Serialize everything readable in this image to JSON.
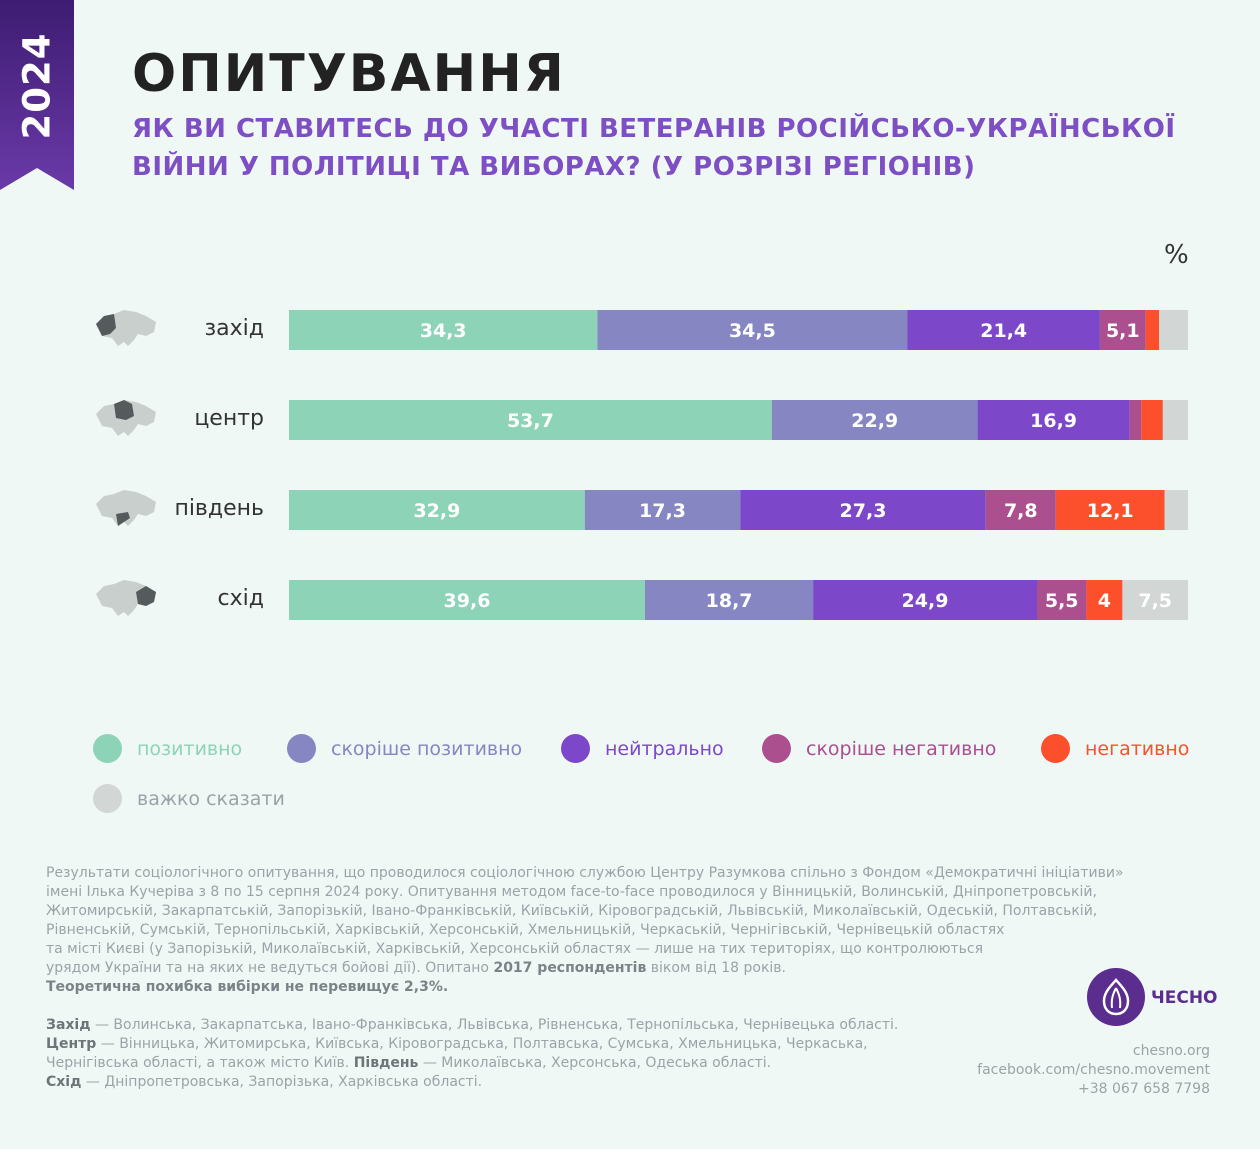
{
  "badge": {
    "year": "2024"
  },
  "header": {
    "title": "ОПИТУВАННЯ",
    "subtitle_line1": "ЯК ВИ СТАВИТЕСЬ ДО УЧАСТІ ВЕТЕРАНІВ РОСІЙСЬКО-УКРАЇНСЬКОЇ",
    "subtitle_line2": "ВІЙНИ У ПОЛІТИЦІ ТА ВИБОРАХ? (У РОЗРІЗІ РЕГІОНІВ)"
  },
  "colors": {
    "accent": "#7e4fc4",
    "ribbon": "#4b2484",
    "map": "#c9cfcd",
    "map_highlight": "#555a5c"
  },
  "chart_data": {
    "type": "bar",
    "orientation": "horizontal",
    "stacked": true,
    "unit": "%",
    "xlim": [
      0,
      100
    ],
    "categories": [
      "захід",
      "центр",
      "південь",
      "схід"
    ],
    "series": [
      {
        "name": "позитивно",
        "color": "#8dd3b7",
        "values": [
          34.3,
          53.7,
          32.9,
          39.6
        ],
        "labels": [
          "34,3",
          "53,7",
          "32,9",
          "39,6"
        ]
      },
      {
        "name": "скоріше позитивно",
        "color": "#8686c2",
        "values": [
          34.5,
          22.9,
          17.3,
          18.7
        ],
        "labels": [
          "34,5",
          "22,9",
          "17,3",
          "18,7"
        ]
      },
      {
        "name": "нейтрально",
        "color": "#7c47c8",
        "values": [
          21.4,
          16.9,
          27.3,
          24.9
        ],
        "labels": [
          "21,4",
          "16,9",
          "27,3",
          "24,9"
        ]
      },
      {
        "name": "скоріше негативно",
        "color": "#ab4f8f",
        "values": [
          5.1,
          1.3,
          7.8,
          5.5
        ],
        "labels": [
          "5,1",
          "",
          "7,8",
          "5,5"
        ]
      },
      {
        "name": "негативно",
        "color": "#fc4f2c",
        "values": [
          1.5,
          2.4,
          12.1,
          4
        ],
        "labels": [
          "",
          "",
          "12,1",
          "4"
        ]
      },
      {
        "name": "важко сказати",
        "color": "#d2d6d5",
        "values": [
          3.2,
          2.8,
          2.6,
          7.5
        ],
        "labels": [
          "",
          "",
          "",
          "7,5"
        ]
      }
    ],
    "legend": "bottom"
  },
  "footnote": {
    "line1": "Результати соціологічного опитування, що проводилося  соціологічною службою Центру Разумкова спільно з Фондом «Демократичні ініціативи»",
    "line2": "імені Ілька Кучеріва з 8 по 15 серпня 2024 року. Опитування методом face-to-face проводилося у Вінницькій, Волинській, Дніпропетровській,",
    "line3": "Житомирській, Закарпатській, Запорізькій, Івано-Франківській, Київській, Кіровоградській, Львівській, Миколаївській, Одеській, Полтавській,",
    "line4": "Рівненській, Сумській, Тернопільській, Харківській, Херсонській, Хмельницькій, Черкаській, Чернігівській, Чернівецькій областях",
    "line5": "та місті Києві (у Запорізькій, Миколаївській, Харківській, Херсонській областях — лише на тих територіях, що контролюються",
    "line6_a": "урядом України та на яких не ведуться бойові дії).  Опитано ",
    "line6_b": "2017 респондентів",
    "line6_c": " віком від 18 років.",
    "line7": "Теоретична похибка вибірки не перевищує 2,3%."
  },
  "regions_note": {
    "west_label": "Захід",
    "west_text": " — Волинська, Закарпатська, Івано-Франківська, Львівська, Рівненська, Тернопільська, Чернівецька області.",
    "center_label": "Центр",
    "center_text1": " — Вінницька, Житомирська, Київська, Кіровоградська, Полтавська, Сумська, Хмельницька, Черкаська,",
    "center_text2": "Чернігівська області, а також місто Київ. ",
    "south_label": "Південь",
    "south_text": " — Миколаївська, Херсонська, Одеська області.",
    "east_label": "Схід",
    "east_text": " — Дніпропетровська, Запорізька, Харківська області."
  },
  "brand": {
    "logo_text": "ЧЕСНО",
    "site": "chesno.org",
    "facebook": "facebook.com/chesno.movement",
    "phone": "+38 067 658 7798"
  }
}
